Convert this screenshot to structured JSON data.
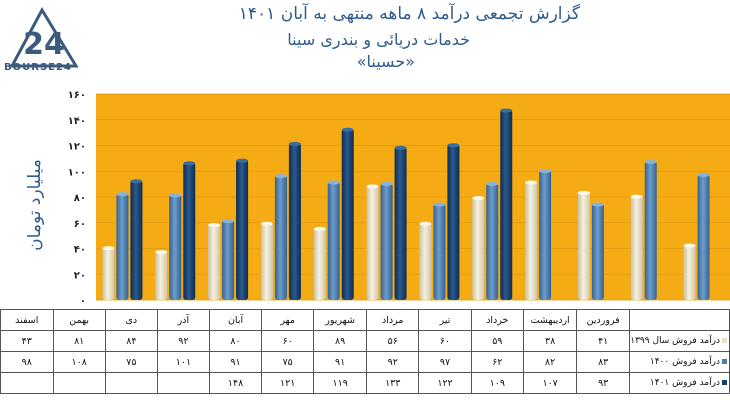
{
  "logo": {
    "text": "BOURSE24",
    "mark": "24"
  },
  "titles": {
    "line1": "گزارش تجمعی درآمد ۸ ماهه منتهی به آبان ۱۴۰۱",
    "line2": "خدمات دریائی و بندری سینا",
    "line3": "«حسینا»"
  },
  "colors": {
    "plot_bg": "#f5ab14",
    "series1399": "#e9e1c6",
    "series1400": "#4b7fb5",
    "series1401": "#173f6c",
    "title": "#2f5b8c"
  },
  "chart_data": {
    "type": "bar",
    "title": "گزارش تجمعی درآمد ۸ ماهه منتهی به آبان ۱۴۰۱",
    "ylabel": "میلیارد تومان",
    "ylim": [
      0,
      160
    ],
    "yticks": [
      "۰",
      "۲۰",
      "۴۰",
      "۶۰",
      "۸۰",
      "۱۰۰",
      "۱۲۰",
      "۱۴۰",
      "۱۶۰"
    ],
    "grid": true,
    "categories": [
      "فروردین",
      "اردیبهشت",
      "خرداد",
      "تیر",
      "مرداد",
      "شهریور",
      "مهر",
      "آبان",
      "آذر",
      "دی",
      "بهمن",
      "اسفند"
    ],
    "series": [
      {
        "name": "درآمد فروش سال ۱۳۹۹",
        "values": [
          41,
          38,
          59,
          60,
          56,
          89,
          60,
          80,
          92,
          84,
          81,
          43
        ],
        "labels": [
          "۴۱",
          "۳۸",
          "۵۹",
          "۶۰",
          "۵۶",
          "۸۹",
          "۶۰",
          "۸۰",
          "۹۲",
          "۸۴",
          "۸۱",
          "۴۳"
        ]
      },
      {
        "name": "درآمد فروش ۱۴۰۰",
        "values": [
          83,
          82,
          62,
          97,
          92,
          91,
          75,
          91,
          101,
          75,
          108,
          98
        ],
        "labels": [
          "۸۳",
          "۸۲",
          "۶۲",
          "۹۷",
          "۹۲",
          "۹۱",
          "۷۵",
          "۹۱",
          "۱۰۱",
          "۷۵",
          "۱۰۸",
          "۹۸"
        ]
      },
      {
        "name": "درآمد فروش ۱۴۰۱",
        "values": [
          93,
          107,
          109,
          122,
          133,
          119,
          121,
          148,
          null,
          null,
          null,
          null
        ],
        "labels": [
          "۹۳",
          "۱۰۷",
          "۱۰۹",
          "۱۲۲",
          "۱۳۳",
          "۱۱۹",
          "۱۲۱",
          "۱۴۸",
          "",
          "",
          "",
          ""
        ]
      }
    ]
  }
}
